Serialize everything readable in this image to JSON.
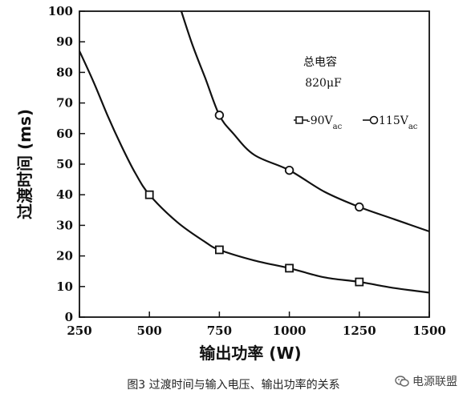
{
  "chart_data": {
    "type": "line",
    "ylabel": "过渡时间 (ms)",
    "xlabel": "输出功率 (W)",
    "xlim": [
      250,
      1500
    ],
    "ylim": [
      0,
      100
    ],
    "xticks": [
      250,
      500,
      750,
      1000,
      1250,
      1500
    ],
    "yticks": [
      0,
      10,
      20,
      30,
      40,
      50,
      60,
      70,
      80,
      90,
      100
    ],
    "grid": false,
    "annotation": [
      "总电容",
      "820μF"
    ],
    "legend": {
      "placement": "top-right",
      "items": [
        {
          "label_main": "-90V",
          "label_sub": "ac",
          "marker": "square"
        },
        {
          "label_main": "115V",
          "label_sub": "ac",
          "marker": "circle"
        }
      ]
    },
    "series": [
      {
        "marker": "square",
        "curve": [
          [
            250,
            87
          ],
          [
            300,
            77
          ],
          [
            350,
            66
          ],
          [
            400,
            56
          ],
          [
            450,
            47
          ],
          [
            500,
            40
          ],
          [
            600,
            31
          ],
          [
            700,
            24.5
          ],
          [
            750,
            22
          ],
          [
            875,
            18.5
          ],
          [
            1000,
            16
          ],
          [
            1125,
            13
          ],
          [
            1250,
            11.5
          ],
          [
            1375,
            9.5
          ],
          [
            1500,
            8
          ]
        ],
        "points": [
          [
            500,
            40
          ],
          [
            750,
            22
          ],
          [
            1000,
            16
          ],
          [
            1250,
            11.5
          ]
        ]
      },
      {
        "marker": "circle",
        "curve": [
          [
            600,
            104
          ],
          [
            650,
            90
          ],
          [
            700,
            78
          ],
          [
            750,
            66
          ],
          [
            800,
            60
          ],
          [
            875,
            53
          ],
          [
            1000,
            48
          ],
          [
            1125,
            41
          ],
          [
            1250,
            36
          ],
          [
            1375,
            32
          ],
          [
            1500,
            28
          ]
        ],
        "points": [
          [
            750,
            66
          ],
          [
            1000,
            48
          ],
          [
            1250,
            36
          ]
        ]
      }
    ]
  },
  "caption": "图3 过渡时间与输入电压、输出功率的关系",
  "watermark": {
    "text": "电源联盟",
    "icon": "wechat-bubble-icon"
  },
  "colors": {
    "line": "#111111",
    "background": "#ffffff"
  }
}
